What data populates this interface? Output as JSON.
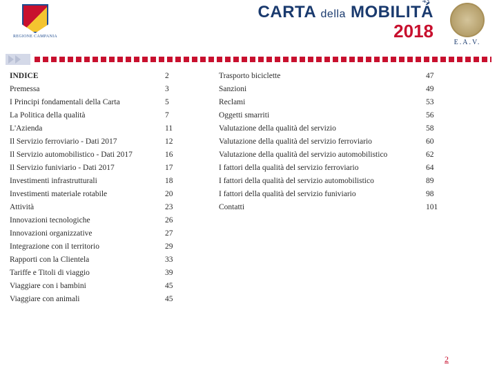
{
  "header": {
    "logo_left_caption": "REGIONE CAMPANIA",
    "title_carta": "CARTA",
    "title_della": "della",
    "title_mobilita": "MOBILITÁ",
    "title_superscript": "43",
    "title_year": "2018",
    "logo_right_caption": "E.A.V."
  },
  "colors": {
    "title_blue": "#1a3a6e",
    "brand_red": "#c8102e",
    "text": "#2a2a2a"
  },
  "toc_left": [
    {
      "label": "INDICE",
      "page": "2"
    },
    {
      "label": "Premessa",
      "page": "3"
    },
    {
      "label": "I Principi fondamentali della Carta",
      "page": "5"
    },
    {
      "label": "La Politica della qualità",
      "page": "7"
    },
    {
      "label": "L'Azienda",
      "page": "11"
    },
    {
      "label": "Il Servizio ferroviario - Dati 2017",
      "page": "12"
    },
    {
      "label": "Il Servizio automobilistico - Dati 2017",
      "page": "16"
    },
    {
      "label": "Il Servizio funiviario - Dati 2017",
      "page": "17"
    },
    {
      "label": "Investimenti infrastrutturali",
      "page": "18"
    },
    {
      "label": "Investimenti materiale rotabile",
      "page": "20"
    },
    {
      "label": "Attività",
      "page": "23"
    },
    {
      "label": "Innovazioni tecnologiche",
      "page": "26"
    },
    {
      "label": "Innovazioni organizzative",
      "page": "27"
    },
    {
      "label": "Integrazione con il territorio",
      "page": "29"
    },
    {
      "label": "Rapporti con la Clientela",
      "page": "33"
    },
    {
      "label": "Tariffe e Titoli di viaggio",
      "page": "39"
    },
    {
      "label": "Viaggiare con i bambini",
      "page": "45"
    },
    {
      "label": "Viaggiare con animali",
      "page": "45"
    }
  ],
  "toc_right": [
    {
      "label": "Trasporto biciclette",
      "page": "47"
    },
    {
      "label": " Sanzioni",
      "page": "49"
    },
    {
      "label": " Reclami",
      "page": "53"
    },
    {
      "label": "Oggetti smarriti",
      "page": "56"
    },
    {
      "label": "Valutazione della qualità del servizio",
      "page": "58"
    },
    {
      "label": "Valutazione della qualità del servizio ferroviario",
      "page": "60"
    },
    {
      "label": "Valutazione della qualità del servizio automobilistico",
      "page": "62"
    },
    {
      "label": "I fattori della qualità del servizio ferroviario",
      "page": "64"
    },
    {
      "label": "I fattori della qualità del servizio automobilistico",
      "page": "89"
    },
    {
      "label": "I fattori della qualità del servizio funiviario",
      "page": "98"
    },
    {
      "label": "Contatti",
      "page": "101"
    }
  ],
  "footer_page": "2"
}
